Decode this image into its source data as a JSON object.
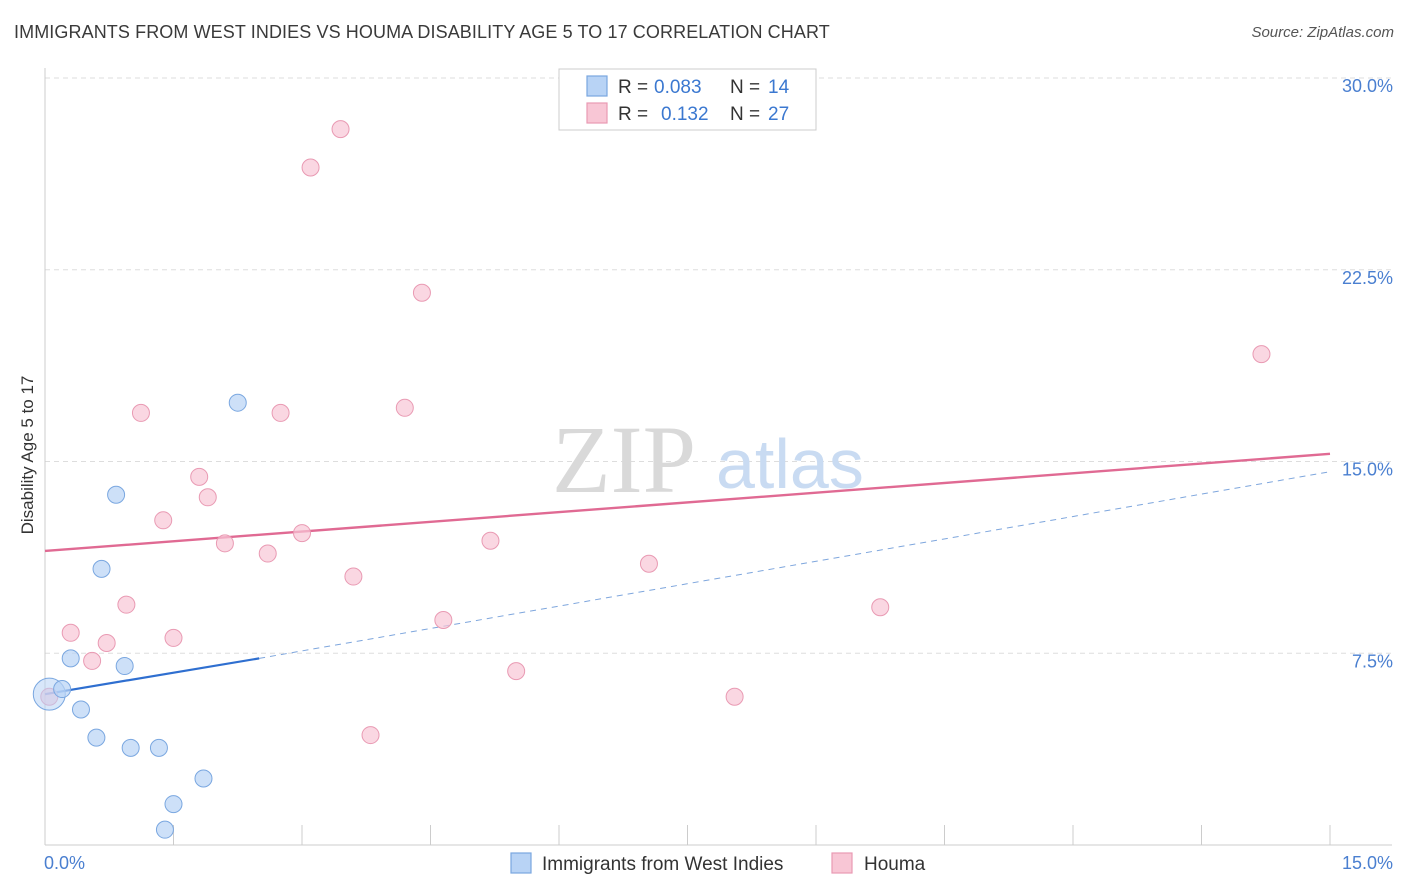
{
  "header": {
    "title": "IMMIGRANTS FROM WEST INDIES VS HOUMA DISABILITY AGE 5 TO 17 CORRELATION CHART",
    "source": "Source: ZipAtlas.com"
  },
  "watermark": {
    "zip": "ZIP",
    "atlas": "atlas"
  },
  "colors": {
    "blue_fill": "#b8d3f5",
    "blue_stroke": "#7aa7e0",
    "blue_line": "#2f6fd0",
    "pink_fill": "#f8c6d5",
    "pink_stroke": "#e99ab3",
    "pink_line": "#e06a93",
    "tick_text": "#4a7fd0",
    "grid": "#dddddd"
  },
  "chart_data": {
    "type": "scatter",
    "title": "IMMIGRANTS FROM WEST INDIES VS HOUMA DISABILITY AGE 5 TO 17 CORRELATION CHART",
    "xlabel": "",
    "ylabel": "Disability Age 5 to 17",
    "xlim": [
      0,
      15
    ],
    "ylim": [
      0,
      30
    ],
    "x_tick_labels": [
      {
        "value": 0,
        "label": "0.0%"
      },
      {
        "value": 15,
        "label": "15.0%"
      }
    ],
    "y_tick_labels": [
      {
        "value": 7.5,
        "label": "7.5%"
      },
      {
        "value": 15,
        "label": "15.0%"
      },
      {
        "value": 22.5,
        "label": "22.5%"
      },
      {
        "value": 30,
        "label": "30.0%"
      }
    ],
    "legend": [
      {
        "series": "Immigrants from West Indies",
        "r_label": "R =",
        "r": "0.083",
        "n_label": "N =",
        "n": "14"
      },
      {
        "series": "Houma",
        "r_label": "R =",
        "r": "0.132",
        "n_label": "N =",
        "n": "27"
      }
    ],
    "series": [
      {
        "name": "Immigrants from West Indies",
        "color": "blue",
        "points": [
          {
            "x": 0.05,
            "y": 5.9,
            "big": true
          },
          {
            "x": 0.2,
            "y": 6.1
          },
          {
            "x": 0.3,
            "y": 7.3
          },
          {
            "x": 0.42,
            "y": 5.3
          },
          {
            "x": 0.6,
            "y": 4.2
          },
          {
            "x": 0.66,
            "y": 10.8
          },
          {
            "x": 0.83,
            "y": 13.7
          },
          {
            "x": 0.93,
            "y": 7.0
          },
          {
            "x": 1.0,
            "y": 3.8
          },
          {
            "x": 1.33,
            "y": 3.8
          },
          {
            "x": 1.5,
            "y": 1.6
          },
          {
            "x": 1.4,
            "y": 0.6
          },
          {
            "x": 1.85,
            "y": 2.6
          },
          {
            "x": 2.25,
            "y": 17.3
          }
        ],
        "trend": {
          "x0": 0.0,
          "y0": 5.9,
          "x1": 2.5,
          "y1": 7.3,
          "dashed_to_x": 15.0,
          "dashed_to_y": 14.6
        }
      },
      {
        "name": "Houma",
        "color": "pink",
        "points": [
          {
            "x": 0.05,
            "y": 5.8
          },
          {
            "x": 0.3,
            "y": 8.3
          },
          {
            "x": 0.55,
            "y": 7.2
          },
          {
            "x": 0.72,
            "y": 7.9
          },
          {
            "x": 0.95,
            "y": 9.4
          },
          {
            "x": 1.12,
            "y": 16.9
          },
          {
            "x": 1.38,
            "y": 12.7
          },
          {
            "x": 1.5,
            "y": 8.1
          },
          {
            "x": 1.8,
            "y": 14.4
          },
          {
            "x": 1.9,
            "y": 13.6
          },
          {
            "x": 2.1,
            "y": 11.8
          },
          {
            "x": 2.6,
            "y": 11.4
          },
          {
            "x": 2.75,
            "y": 16.9
          },
          {
            "x": 3.0,
            "y": 12.2
          },
          {
            "x": 3.1,
            "y": 26.5
          },
          {
            "x": 3.45,
            "y": 28.0
          },
          {
            "x": 3.6,
            "y": 10.5
          },
          {
            "x": 3.8,
            "y": 4.3
          },
          {
            "x": 4.2,
            "y": 17.1
          },
          {
            "x": 4.4,
            "y": 21.6
          },
          {
            "x": 4.65,
            "y": 8.8
          },
          {
            "x": 5.2,
            "y": 11.9
          },
          {
            "x": 5.5,
            "y": 6.8
          },
          {
            "x": 7.05,
            "y": 11.0
          },
          {
            "x": 8.05,
            "y": 5.8
          },
          {
            "x": 9.75,
            "y": 9.3
          },
          {
            "x": 14.2,
            "y": 19.2
          }
        ],
        "trend": {
          "x0": 0.0,
          "y0": 11.5,
          "x1": 15.0,
          "y1": 15.3
        }
      }
    ],
    "grid": true,
    "legend_position": "top-center"
  }
}
